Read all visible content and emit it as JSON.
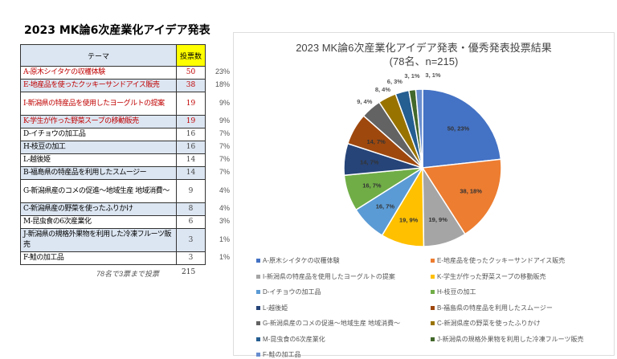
{
  "title": "2023 MK論6次産業化アイデア発表",
  "table": {
    "header_theme": "テーマ",
    "header_votes": "投票数",
    "rows": [
      {
        "theme": "A-原木シイタケの収穫体験",
        "votes": "50",
        "pct": "23%"
      },
      {
        "theme": "E-地産品を使ったクッキーサンドアイス販売",
        "votes": "38",
        "pct": "18%"
      },
      {
        "theme": "I-新潟県の特産品を使用したヨーグルトの提案",
        "votes": "19",
        "pct": "9%"
      },
      {
        "theme": "K-学生が作った野菜スープの移動販売",
        "votes": "19",
        "pct": "9%"
      },
      {
        "theme": "D-イチョウの加工品",
        "votes": "16",
        "pct": "7%"
      },
      {
        "theme": "H-枝豆の加工",
        "votes": "16",
        "pct": "7%"
      },
      {
        "theme": "L-越後姫",
        "votes": "14",
        "pct": "7%"
      },
      {
        "theme": "B-福島県の特産品を利用したスムージー",
        "votes": "14",
        "pct": "7%"
      },
      {
        "theme": "G-新潟県産のコメの促進～地域生産 地域消費～",
        "votes": "9",
        "pct": "4%"
      },
      {
        "theme": "C-新潟県産の野菜を使ったふりかけ",
        "votes": "8",
        "pct": "4%"
      },
      {
        "theme": "M-昆虫食の6次産業化",
        "votes": "6",
        "pct": "3%"
      },
      {
        "theme": "J-新潟県の規格外果物を利用した冷凍フルーツ販売",
        "votes": "3",
        "pct": "1%"
      },
      {
        "theme": "F-鮭の加工品",
        "votes": "3",
        "pct": "1%"
      }
    ],
    "note": "78名で3票まで投票",
    "total": "215"
  },
  "chart_data": {
    "type": "pie",
    "title": "2023 MK論6次産業化アイデア発表・優秀発表投票結果",
    "subtitle": "(78名、n=215)",
    "categories": [
      "A-原木シイタケの収穫体験",
      "E-地産品を使ったクッキーサンドアイス販売",
      "I-新潟県の特産品を使用したヨーグルトの提案",
      "K-学生が作った野菜スープの移動販売",
      "D-イチョウの加工品",
      "H-枝豆の加工",
      "L-越後姫",
      "B-福島県の特産品を利用したスムージー",
      "G-新潟県産のコメの促進～地域生産 地域消費～",
      "C-新潟県産の野菜を使ったふりかけ",
      "M-昆虫食の6次産業化",
      "J-新潟県の規格外果物を利用した冷凍フルーツ販売",
      "F-鮭の加工品"
    ],
    "values": [
      50,
      38,
      19,
      19,
      16,
      16,
      14,
      14,
      9,
      8,
      6,
      3,
      3
    ],
    "data_labels": [
      "50, 23%",
      "38, 18%",
      "19, 9%",
      "19, 9%",
      "16, 7%",
      "16, 7%",
      "14, 7%",
      "14, 7%",
      "9, 4%",
      "8, 4%",
      "6, 3%",
      "3, 1%",
      "3, 1%"
    ],
    "colors": [
      "#4472C4",
      "#ED7D31",
      "#A5A5A5",
      "#FFC000",
      "#5B9BD5",
      "#70AD47",
      "#264478",
      "#9E480E",
      "#636363",
      "#997300",
      "#255E91",
      "#43682B",
      "#698ED0"
    ],
    "legend": "bottom"
  }
}
